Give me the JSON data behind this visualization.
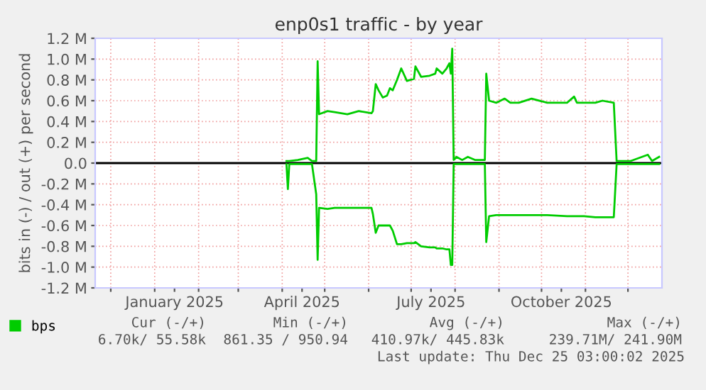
{
  "chart_data": {
    "type": "line",
    "title": "enp0s1 traffic - by year",
    "ylabel": "bits in (-) / out (+) per second",
    "x": [
      "2025-04-04",
      "2025-04-05",
      "2025-04-06",
      "2025-04-12",
      "2025-04-19",
      "2025-04-22",
      "2025-04-25",
      "2025-04-26",
      "2025-04-27",
      "2025-05-03",
      "2025-05-08",
      "2025-05-17",
      "2025-05-25",
      "2025-06-03",
      "2025-06-04",
      "2025-06-06",
      "2025-06-08",
      "2025-06-11",
      "2025-06-14",
      "2025-06-16",
      "2025-06-18",
      "2025-06-21",
      "2025-06-24",
      "2025-06-28",
      "2025-07-03",
      "2025-07-04",
      "2025-07-08",
      "2025-07-14",
      "2025-07-18",
      "2025-07-19",
      "2025-07-23",
      "2025-07-26",
      "2025-07-28",
      "2025-07-29",
      "2025-07-30",
      "2025-07-31",
      "2025-08-02",
      "2025-08-06",
      "2025-08-10",
      "2025-08-15",
      "2025-08-22",
      "2025-08-23",
      "2025-08-25",
      "2025-08-30",
      "2025-09-05",
      "2025-09-09",
      "2025-09-15",
      "2025-09-24",
      "2025-10-05",
      "2025-10-19",
      "2025-10-24",
      "2025-10-26",
      "2025-10-31",
      "2025-11-08",
      "2025-11-13",
      "2025-11-21",
      "2025-11-23",
      "2025-12-03",
      "2025-12-15",
      "2025-12-18",
      "2025-12-23"
    ],
    "series": [
      {
        "name": "bps",
        "color": "#00cc00",
        "values": [
          0.02,
          0.02,
          0.02,
          0.03,
          0.05,
          0.02,
          0.02,
          0.98,
          0.47,
          0.5,
          0.49,
          0.47,
          0.5,
          0.48,
          0.5,
          0.76,
          0.7,
          0.63,
          0.65,
          0.72,
          0.7,
          0.8,
          0.91,
          0.79,
          0.81,
          0.93,
          0.83,
          0.84,
          0.86,
          0.91,
          0.86,
          0.91,
          0.96,
          0.86,
          1.1,
          0.03,
          0.06,
          0.03,
          0.06,
          0.03,
          0.03,
          0.86,
          0.6,
          0.58,
          0.62,
          0.58,
          0.58,
          0.62,
          0.58,
          0.58,
          0.64,
          0.58,
          0.58,
          0.58,
          0.6,
          0.58,
          0.02,
          0.02,
          0.08,
          0.02,
          0.06
        ]
      },
      {
        "color": "#00cc00",
        "values": [
          -0.01,
          -0.25,
          -0.01,
          -0.01,
          -0.01,
          -0.01,
          -0.3,
          -0.93,
          -0.43,
          -0.44,
          -0.43,
          -0.43,
          -0.43,
          -0.43,
          -0.49,
          -0.67,
          -0.6,
          -0.6,
          -0.6,
          -0.6,
          -0.65,
          -0.78,
          -0.78,
          -0.77,
          -0.77,
          -0.76,
          -0.8,
          -0.81,
          -0.81,
          -0.82,
          -0.82,
          -0.83,
          -0.83,
          -0.98,
          -0.98,
          -0.01,
          -0.01,
          -0.01,
          -0.01,
          -0.01,
          -0.01,
          -0.76,
          -0.51,
          -0.5,
          -0.5,
          -0.5,
          -0.5,
          -0.5,
          -0.5,
          -0.51,
          -0.51,
          -0.51,
          -0.51,
          -0.52,
          -0.52,
          -0.52,
          -0.01,
          -0.01,
          -0.01,
          -0.01,
          -0.01
        ]
      }
    ],
    "xlim": [
      "2024-11-20",
      "2025-12-25"
    ],
    "xticks": [
      {
        "value": "2024-12-01",
        "label": null
      },
      {
        "value": "2025-01-01",
        "label": null
      },
      {
        "value": "2025-01-15",
        "label": "January 2025"
      },
      {
        "value": "2025-02-01",
        "label": null
      },
      {
        "value": "2025-03-01",
        "label": null
      },
      {
        "value": "2025-04-01",
        "label": null
      },
      {
        "value": "2025-04-15",
        "label": "April 2025"
      },
      {
        "value": "2025-05-01",
        "label": null
      },
      {
        "value": "2025-06-01",
        "label": null
      },
      {
        "value": "2025-07-01",
        "label": null
      },
      {
        "value": "2025-07-15",
        "label": "July 2025"
      },
      {
        "value": "2025-08-01",
        "label": null
      },
      {
        "value": "2025-09-01",
        "label": null
      },
      {
        "value": "2025-10-01",
        "label": null
      },
      {
        "value": "2025-10-15",
        "label": "October 2025"
      },
      {
        "value": "2025-11-01",
        "label": null
      },
      {
        "value": "2025-12-01",
        "label": null
      }
    ],
    "ylim": [
      -1.2,
      1.2
    ],
    "yticks": [
      {
        "value": -1.2,
        "label": "-1.2 M"
      },
      {
        "value": -1.0,
        "label": "-1.0 M"
      },
      {
        "value": -0.8,
        "label": "-0.8 M"
      },
      {
        "value": -0.6,
        "label": "-0.6 M"
      },
      {
        "value": -0.4,
        "label": "-0.4 M"
      },
      {
        "value": -0.2,
        "label": "-0.2 M"
      },
      {
        "value": 0,
        "label": "0.0"
      },
      {
        "value": 0.2,
        "label": "0.2 M"
      },
      {
        "value": 0.4,
        "label": "0.4 M"
      },
      {
        "value": 0.6,
        "label": "0.6 M"
      },
      {
        "value": 0.8,
        "label": "0.8 M"
      },
      {
        "value": 1.0,
        "label": "1.0 M"
      },
      {
        "value": 1.2,
        "label": "1.2 M"
      }
    ],
    "ref_lines": [
      {
        "axis": "y",
        "value": 0,
        "color": "#000000"
      }
    ],
    "grid": true,
    "legend": "bottom left",
    "annotations": [
      "Cur (-/+)",
      "Min (-/+)",
      "Avg (-/+)",
      "Max (-/+)",
      "6.70k/ 55.58k",
      "861.35 / 950.94",
      "410.97k/ 445.83k",
      "239.71M/ 241.90M",
      "Last update: Thu Dec 25 03:00:02 2025"
    ]
  }
}
